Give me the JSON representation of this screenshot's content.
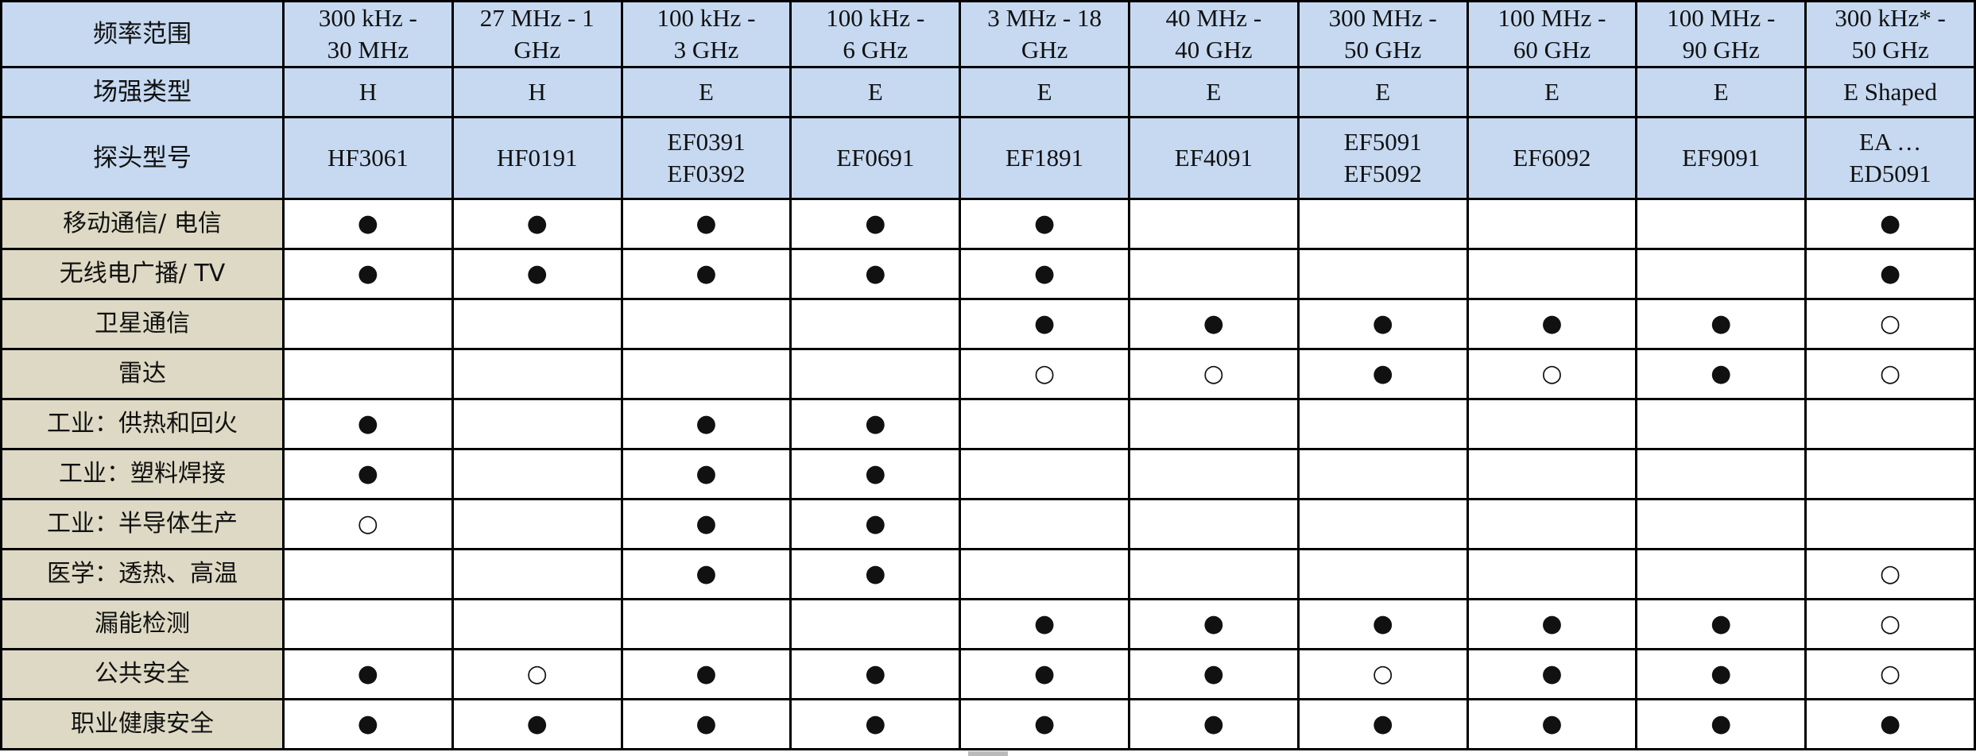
{
  "header": {
    "freq_label": "频率范围",
    "field_label": "场强类型",
    "probe_label": "探头型号",
    "columns": [
      {
        "freq": [
          "300 kHz -",
          "30 MHz"
        ],
        "field": "H",
        "probe": [
          "HF3061"
        ]
      },
      {
        "freq": [
          "27 MHz - 1",
          "GHz"
        ],
        "field": "H",
        "probe": [
          "HF0191"
        ]
      },
      {
        "freq": [
          "100 kHz -",
          "3 GHz"
        ],
        "field": "E",
        "probe": [
          "EF0391",
          "EF0392"
        ]
      },
      {
        "freq": [
          "100 kHz -",
          "6 GHz"
        ],
        "field": "E",
        "probe": [
          "EF0691"
        ]
      },
      {
        "freq": [
          "3 MHz - 18",
          "GHz"
        ],
        "field": "E",
        "probe": [
          "EF1891"
        ]
      },
      {
        "freq": [
          "40 MHz -",
          "40 GHz"
        ],
        "field": "E",
        "probe": [
          "EF4091"
        ]
      },
      {
        "freq": [
          "300 MHz -",
          "50 GHz"
        ],
        "field": "E",
        "probe": [
          "EF5091",
          "EF5092"
        ]
      },
      {
        "freq": [
          "100 MHz -",
          "60 GHz"
        ],
        "field": "E",
        "probe": [
          "EF6092"
        ]
      },
      {
        "freq": [
          "100 MHz -",
          "90 GHz"
        ],
        "field": "E",
        "probe": [
          "EF9091"
        ]
      },
      {
        "freq": [
          "300 kHz* -",
          "50 GHz"
        ],
        "field": "E Shaped",
        "probe": [
          "EA …",
          "ED5091"
        ]
      }
    ]
  },
  "rows": [
    {
      "label": "移动通信/ 电信",
      "marks": [
        "●",
        "●",
        "●",
        "●",
        "●",
        "",
        "",
        "",
        "",
        "●"
      ]
    },
    {
      "label": "无线电广播/ TV",
      "marks": [
        "●",
        "●",
        "●",
        "●",
        "●",
        "",
        "",
        "",
        "",
        "●"
      ]
    },
    {
      "label": "卫星通信",
      "marks": [
        "",
        "",
        "",
        "",
        "●",
        "●",
        "●",
        "●",
        "●",
        "○"
      ]
    },
    {
      "label": "雷达",
      "marks": [
        "",
        "",
        "",
        "",
        "○",
        "○",
        "●",
        "○",
        "●",
        "○"
      ]
    },
    {
      "label": "工业：供热和回火",
      "marks": [
        "●",
        "",
        "●",
        "●",
        "",
        "",
        "",
        "",
        "",
        ""
      ]
    },
    {
      "label": "工业：塑料焊接",
      "marks": [
        "●",
        "",
        "●",
        "●",
        "",
        "",
        "",
        "",
        "",
        ""
      ]
    },
    {
      "label": "工业：半导体生产",
      "marks": [
        "○",
        "",
        "●",
        "●",
        "",
        "",
        "",
        "",
        "",
        ""
      ]
    },
    {
      "label": "医学：透热、高温",
      "marks": [
        "",
        "",
        "●",
        "●",
        "",
        "",
        "",
        "",
        "",
        "○"
      ]
    },
    {
      "label": "漏能检测",
      "marks": [
        "",
        "",
        "",
        "",
        "●",
        "●",
        "●",
        "●",
        "●",
        "○"
      ]
    },
    {
      "label": "公共安全",
      "marks": [
        "●",
        "○",
        "●",
        "●",
        "●",
        "●",
        "○",
        "●",
        "●",
        "○"
      ]
    },
    {
      "label": "职业健康安全",
      "marks": [
        "●",
        "●",
        "●",
        "●",
        "●",
        "●",
        "●",
        "●",
        "●",
        "●"
      ]
    }
  ],
  "legend_icons": {
    "●": "filled-circle-icon",
    "○": "open-circle-icon"
  },
  "colors": {
    "header_bg": "#c6d9f1",
    "label_bg": "#ddd9c4"
  }
}
